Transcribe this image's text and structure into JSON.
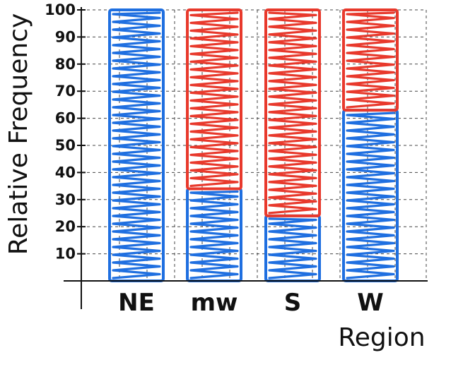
{
  "chart_data": {
    "type": "bar",
    "stacked": true,
    "categories": [
      "NE",
      "mw",
      "S",
      "W"
    ],
    "series": [
      {
        "values": [
          100,
          34,
          24,
          63
        ],
        "color": "#1f6fe0"
      },
      {
        "values": [
          0,
          66,
          76,
          37
        ],
        "color": "#e8392c"
      }
    ],
    "xlabel": "Region",
    "ylabel": "Relative Frequency",
    "yticks": [
      10,
      20,
      30,
      40,
      50,
      60,
      70,
      80,
      90,
      100
    ],
    "ylim": [
      0,
      100
    ],
    "grid": true
  }
}
